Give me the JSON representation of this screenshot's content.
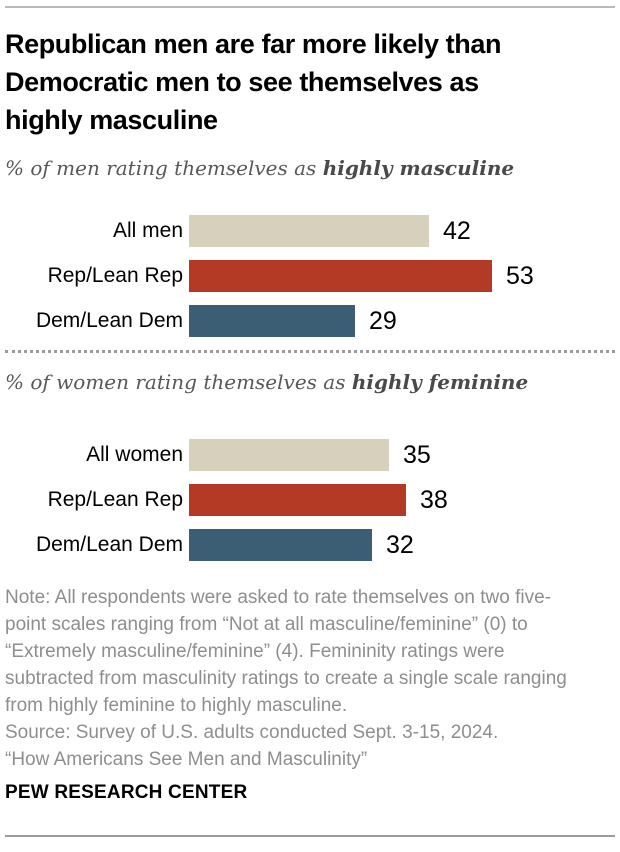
{
  "header": {
    "title_lines": [
      "Republican men are far more likely than",
      "Democratic men to see themselves as",
      "highly masculine"
    ]
  },
  "chart_data": [
    {
      "type": "bar",
      "orientation": "horizontal",
      "subtitle_prefix": "% of men rating themselves as ",
      "subtitle_emphasis": "highly masculine",
      "categories": [
        "All men",
        "Rep/Lean Rep",
        "Dem/Lean Dem"
      ],
      "values": [
        42,
        53,
        29
      ],
      "colors": [
        "#d6d0bd",
        "#b53a26",
        "#3b5e74"
      ],
      "xlim": [
        0,
        60
      ],
      "grid": false,
      "value_labels": "end-of-bar"
    },
    {
      "type": "bar",
      "orientation": "horizontal",
      "subtitle_prefix": "% of women rating themselves as ",
      "subtitle_emphasis": "highly feminine",
      "categories": [
        "All women",
        "Rep/Lean Rep",
        "Dem/Lean Dem"
      ],
      "values": [
        35,
        38,
        32
      ],
      "colors": [
        "#d6d0bd",
        "#b53a26",
        "#3b5e74"
      ],
      "xlim": [
        0,
        60
      ],
      "grid": false,
      "value_labels": "end-of-bar"
    }
  ],
  "footnote": {
    "note_lines": [
      "Note: All respondents were asked to rate themselves on two five-",
      "point scales ranging from “Not at all masculine/feminine” (0) to",
      "“Extremely masculine/feminine” (4). Femininity ratings were",
      "subtracted from masculinity ratings to create a single scale ranging",
      "from highly feminine to highly masculine.",
      "Source: Survey of U.S. adults conducted Sept. 3-15, 2024.",
      "“How Americans See Men and Masculinity”"
    ]
  },
  "footer": {
    "brand": "PEW RESEARCH CENTER"
  },
  "style_colors": {
    "bar_beige": "#d6d0bd",
    "bar_red": "#b53a26",
    "bar_blue": "#3b5e74",
    "subtitle_gray": "#58585a",
    "note_gray": "#8e8e8e"
  }
}
